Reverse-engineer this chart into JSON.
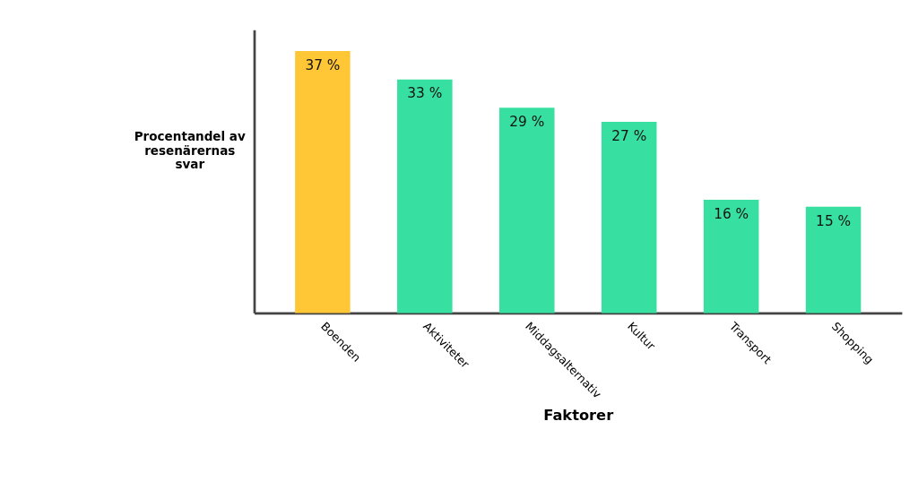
{
  "chart_data": {
    "type": "bar",
    "xlabel": "Faktorer",
    "ylabel": "Procentandel av resenärernas svar",
    "categories": [
      "Boenden",
      "Aktiviteter",
      "Middagsalternativ",
      "Kultur",
      "Transport",
      "Shopping"
    ],
    "values": [
      37,
      33,
      29,
      27,
      16,
      15
    ],
    "colors": [
      "#ffc736",
      "#37e0a0",
      "#37e0a0",
      "#37e0a0",
      "#37e0a0",
      "#37e0a0"
    ],
    "value_labels": [
      "37 %",
      "33 %",
      "29 %",
      "27 %",
      "16 %",
      "15 %"
    ],
    "grid": false
  }
}
